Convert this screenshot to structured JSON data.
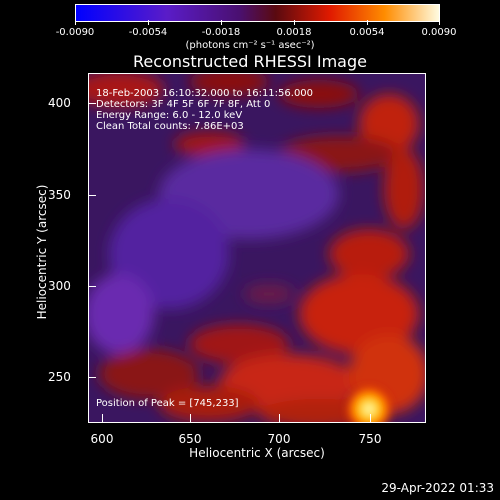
{
  "colorbar": {
    "tick_labels": [
      "-0.0090",
      "-0.0054",
      "-0.0018",
      "0.0018",
      "0.0054",
      "0.0090"
    ],
    "units": "(photons cm⁻² s⁻¹ asec⁻²)"
  },
  "title": "Reconstructed RHESSI Image",
  "info": {
    "time": "18-Feb-2003 16:10:32.000 to 16:11:56.000",
    "detectors": "Detectors: 3F 4F 5F 6F 7F 8F, Att 0",
    "energy": "Energy Range: 6.0 - 12.0 keV",
    "clean": "Clean    Total counts: 7.86E+03"
  },
  "peak": "Position of Peak = [745,233]",
  "chart_data": {
    "type": "heatmap",
    "title": "Reconstructed RHESSI Image",
    "xlabel": "Heliocentric X (arcsec)",
    "ylabel": "Heliocentric Y (arcsec)",
    "xlim": [
      585,
      775
    ],
    "ylim": [
      220,
      415
    ],
    "x_ticks": [
      "600",
      "650",
      "700",
      "750"
    ],
    "y_ticks": [
      "250",
      "300",
      "350",
      "400"
    ],
    "color_range": [
      -0.009,
      0.009
    ],
    "peak_position": [
      745,
      233
    ]
  },
  "footer": {
    "timestamp": "29-Apr-2022 01:33"
  }
}
